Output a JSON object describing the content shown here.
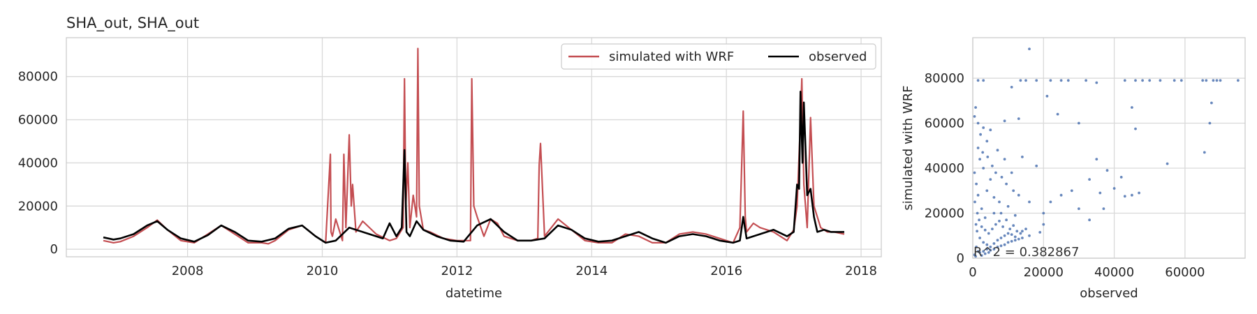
{
  "chart_data": [
    {
      "type": "line",
      "title": "SHA_out, SHA_out",
      "xlabel": "datetime",
      "ylabel": "",
      "xlim": [
        2006.2,
        2018.3
      ],
      "ylim": [
        -3500,
        98000
      ],
      "xticks": [
        2008,
        2010,
        2012,
        2014,
        2016,
        2018
      ],
      "yticks": [
        0,
        20000,
        40000,
        60000,
        80000
      ],
      "grid": true,
      "legend": {
        "placement": "top-right",
        "columns": 2
      },
      "series": [
        {
          "name": "simulated with WRF",
          "color": "#c44e52",
          "x": [
            2006.75,
            2006.9,
            2007.0,
            2007.2,
            2007.4,
            2007.55,
            2007.7,
            2007.9,
            2008.1,
            2008.3,
            2008.5,
            2008.7,
            2008.9,
            2009.1,
            2009.2,
            2009.3,
            2009.5,
            2009.7,
            2009.9,
            2010.05,
            2010.12,
            2010.13,
            2010.15,
            2010.2,
            2010.3,
            2010.32,
            2010.35,
            2010.4,
            2010.43,
            2010.45,
            2010.5,
            2010.6,
            2010.8,
            2011.0,
            2011.1,
            2011.2,
            2011.22,
            2011.24,
            2011.27,
            2011.3,
            2011.35,
            2011.4,
            2011.42,
            2011.44,
            2011.5,
            2011.6,
            2011.8,
            2012.0,
            2012.2,
            2012.22,
            2012.25,
            2012.3,
            2012.4,
            2012.5,
            2012.6,
            2012.7,
            2012.9,
            2013.1,
            2013.2,
            2013.22,
            2013.24,
            2013.3,
            2013.5,
            2013.7,
            2013.9,
            2014.1,
            2014.3,
            2014.5,
            2014.7,
            2014.9,
            2015.1,
            2015.3,
            2015.5,
            2015.7,
            2015.9,
            2016.1,
            2016.2,
            2016.25,
            2016.28,
            2016.3,
            2016.4,
            2016.5,
            2016.7,
            2016.9,
            2017.0,
            2017.05,
            2017.1,
            2017.12,
            2017.15,
            2017.2,
            2017.25,
            2017.3,
            2017.35,
            2017.4,
            2017.5,
            2017.6,
            2017.75
          ],
          "y": [
            4000,
            3000,
            3500,
            6000,
            10000,
            13500,
            9000,
            4000,
            3000,
            7000,
            11000,
            7000,
            3000,
            3000,
            2500,
            4000,
            9000,
            11000,
            6000,
            3000,
            44000,
            8000,
            6000,
            14000,
            4000,
            44000,
            10000,
            53000,
            20000,
            30000,
            8000,
            13000,
            7000,
            4000,
            5000,
            10000,
            79000,
            20000,
            40000,
            10000,
            25000,
            15000,
            93000,
            20000,
            9000,
            8000,
            5000,
            4000,
            4000,
            79000,
            20000,
            15000,
            6000,
            14000,
            12000,
            6000,
            4000,
            4000,
            5000,
            39000,
            49000,
            6000,
            14000,
            9000,
            4000,
            3000,
            3000,
            7000,
            6000,
            3000,
            3000,
            7000,
            8000,
            7000,
            5000,
            3000,
            10000,
            64000,
            15000,
            8000,
            12000,
            10000,
            8000,
            4000,
            9000,
            20000,
            60000,
            79000,
            30000,
            10000,
            61000,
            20000,
            15000,
            10000,
            8000,
            8000,
            7000
          ]
        },
        {
          "name": "observed",
          "color": "#000000",
          "x": [
            2006.75,
            2006.9,
            2007.0,
            2007.2,
            2007.4,
            2007.55,
            2007.7,
            2007.9,
            2008.1,
            2008.3,
            2008.5,
            2008.7,
            2008.9,
            2009.1,
            2009.3,
            2009.5,
            2009.7,
            2009.9,
            2010.05,
            2010.2,
            2010.4,
            2010.5,
            2010.7,
            2010.9,
            2011.0,
            2011.1,
            2011.18,
            2011.22,
            2011.25,
            2011.3,
            2011.4,
            2011.5,
            2011.7,
            2011.9,
            2012.1,
            2012.3,
            2012.5,
            2012.7,
            2012.9,
            2013.1,
            2013.3,
            2013.5,
            2013.7,
            2013.9,
            2014.1,
            2014.3,
            2014.5,
            2014.7,
            2014.9,
            2015.1,
            2015.3,
            2015.5,
            2015.7,
            2015.9,
            2016.1,
            2016.2,
            2016.25,
            2016.3,
            2016.5,
            2016.7,
            2016.9,
            2017.0,
            2017.05,
            2017.08,
            2017.1,
            2017.13,
            2017.15,
            2017.2,
            2017.25,
            2017.3,
            2017.35,
            2017.45,
            2017.55,
            2017.75
          ],
          "y": [
            5500,
            4500,
            5000,
            7000,
            11000,
            13000,
            9000,
            5000,
            3500,
            6500,
            11000,
            8000,
            4000,
            3500,
            5000,
            9500,
            11000,
            6000,
            3000,
            4000,
            10000,
            9000,
            7000,
            5000,
            12000,
            6000,
            10000,
            46000,
            8000,
            6000,
            13000,
            9000,
            6000,
            4000,
            3500,
            11000,
            14000,
            8000,
            4000,
            4000,
            5000,
            11000,
            9000,
            5000,
            3500,
            4000,
            6000,
            8000,
            5000,
            3000,
            6000,
            7000,
            6000,
            4000,
            3000,
            4000,
            15000,
            5000,
            7000,
            9000,
            6000,
            8000,
            30000,
            28000,
            73000,
            40000,
            68000,
            25000,
            28000,
            15000,
            8000,
            9000,
            8000,
            8000
          ]
        }
      ]
    },
    {
      "type": "scatter",
      "title": "",
      "xlabel": "observed",
      "ylabel": "simulated with WRF",
      "xlim": [
        0,
        77000
      ],
      "ylim": [
        0,
        98000
      ],
      "xticks": [
        0,
        20000,
        40000,
        60000
      ],
      "yticks": [
        0,
        20000,
        40000,
        60000,
        80000
      ],
      "grid": true,
      "color": "#4c72b0",
      "annotation": "R^2 = 0.382867",
      "points": [
        [
          1500,
          79000
        ],
        [
          3000,
          79000
        ],
        [
          11000,
          76000
        ],
        [
          13500,
          79000
        ],
        [
          15000,
          79000
        ],
        [
          18000,
          79000
        ],
        [
          22000,
          79000
        ],
        [
          25000,
          79000
        ],
        [
          27000,
          79000
        ],
        [
          32000,
          79000
        ],
        [
          35000,
          78000
        ],
        [
          43000,
          79000
        ],
        [
          46000,
          79000
        ],
        [
          48000,
          79000
        ],
        [
          50000,
          79000
        ],
        [
          53000,
          79000
        ],
        [
          57000,
          79000
        ],
        [
          59000,
          79000
        ],
        [
          65000,
          79000
        ],
        [
          66000,
          79000
        ],
        [
          68000,
          79000
        ],
        [
          69000,
          79000
        ],
        [
          70000,
          79000
        ],
        [
          75000,
          79000
        ],
        [
          16000,
          93000
        ],
        [
          45000,
          67000
        ],
        [
          67500,
          69000
        ],
        [
          46000,
          57500
        ],
        [
          67000,
          60000
        ],
        [
          30000,
          60000
        ],
        [
          24000,
          64000
        ],
        [
          21000,
          72000
        ],
        [
          13000,
          62000
        ],
        [
          500,
          63000
        ],
        [
          800,
          67000
        ],
        [
          1500,
          60000
        ],
        [
          2200,
          55000
        ],
        [
          3000,
          58000
        ],
        [
          4000,
          52000
        ],
        [
          5000,
          57000
        ],
        [
          9000,
          61000
        ],
        [
          55000,
          42000
        ],
        [
          65500,
          47000
        ],
        [
          42000,
          36000
        ],
        [
          35000,
          44000
        ],
        [
          40000,
          31000
        ],
        [
          45000,
          28000
        ],
        [
          47000,
          29000
        ],
        [
          43000,
          27500
        ],
        [
          38000,
          39000
        ],
        [
          33000,
          35000
        ],
        [
          36000,
          29000
        ],
        [
          37000,
          22000
        ],
        [
          28000,
          30000
        ],
        [
          25000,
          28000
        ],
        [
          22000,
          25000
        ],
        [
          30000,
          22000
        ],
        [
          33000,
          17000
        ],
        [
          20000,
          20000
        ],
        [
          18000,
          41000
        ],
        [
          14000,
          45000
        ],
        [
          16000,
          25000
        ],
        [
          20000,
          15000
        ],
        [
          14000,
          12000
        ],
        [
          19000,
          11500
        ],
        [
          7000,
          48000
        ],
        [
          9000,
          44000
        ],
        [
          11000,
          38000
        ],
        [
          2000,
          44000
        ],
        [
          3000,
          40000
        ],
        [
          5000,
          35000
        ],
        [
          4000,
          30000
        ],
        [
          6000,
          27000
        ],
        [
          7500,
          25000
        ],
        [
          1000,
          33000
        ],
        [
          1500,
          28000
        ],
        [
          2500,
          22000
        ],
        [
          3500,
          18000
        ],
        [
          8000,
          20000
        ],
        [
          10000,
          23000
        ],
        [
          12000,
          19000
        ],
        [
          6000,
          20000
        ],
        [
          1500,
          49000
        ],
        [
          2800,
          47000
        ],
        [
          4200,
          45000
        ],
        [
          5500,
          41000
        ],
        [
          6500,
          38000
        ],
        [
          8200,
          36000
        ],
        [
          9500,
          33000
        ],
        [
          11500,
          30000
        ],
        [
          13000,
          28000
        ],
        [
          500,
          38000
        ],
        [
          600,
          25000
        ],
        [
          900,
          15000
        ],
        [
          1200,
          12000
        ],
        [
          2000,
          9000
        ],
        [
          3000,
          7000
        ],
        [
          4000,
          6000
        ],
        [
          5000,
          5000
        ],
        [
          6000,
          6500
        ],
        [
          7000,
          8000
        ],
        [
          8000,
          9000
        ],
        [
          9000,
          10000
        ],
        [
          10000,
          11000
        ],
        [
          11000,
          10500
        ],
        [
          12000,
          9500
        ],
        [
          13000,
          8500
        ],
        [
          14000,
          9000
        ],
        [
          4500,
          11000
        ],
        [
          5500,
          13000
        ],
        [
          6500,
          15000
        ],
        [
          7500,
          16500
        ],
        [
          8500,
          14000
        ],
        [
          9500,
          17000
        ],
        [
          3500,
          12500
        ],
        [
          2500,
          14000
        ],
        [
          1800,
          17000
        ],
        [
          1300,
          20000
        ],
        [
          10500,
          13000
        ],
        [
          11500,
          14500
        ],
        [
          12500,
          12000
        ],
        [
          13500,
          11000
        ],
        [
          15000,
          13000
        ],
        [
          16000,
          10000
        ],
        [
          3000,
          3000
        ],
        [
          4000,
          4000
        ],
        [
          2000,
          2500
        ],
        [
          5000,
          3500
        ],
        [
          6000,
          4000
        ],
        [
          7000,
          5000
        ],
        [
          8000,
          5500
        ],
        [
          9000,
          6000
        ],
        [
          10000,
          7000
        ],
        [
          11000,
          7500
        ],
        [
          12000,
          8000
        ],
        [
          1000,
          5000
        ],
        [
          1500,
          3000
        ],
        [
          500,
          1500
        ],
        [
          800,
          800
        ],
        [
          2500,
          1200
        ],
        [
          3500,
          2000
        ],
        [
          4500,
          2500
        ]
      ]
    }
  ]
}
